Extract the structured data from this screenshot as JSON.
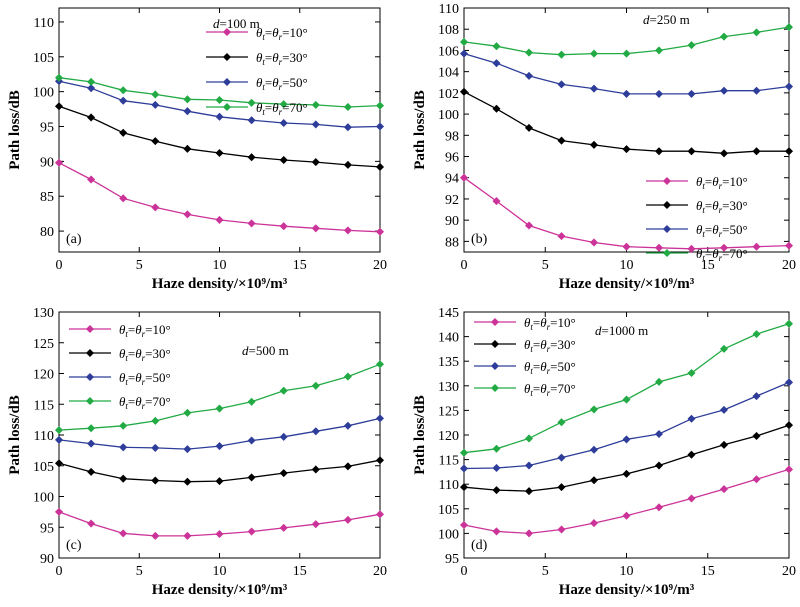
{
  "chart_data": [
    {
      "type": "line",
      "panel_label": "(a)",
      "annotation": {
        "prefix": "d",
        "value": "=100 m"
      },
      "xlabel": "Haze density/×10⁹/m³",
      "ylabel": "Path loss/dB",
      "xlim": [
        0,
        20
      ],
      "ylim": [
        77,
        112
      ],
      "xticks": [
        0,
        5,
        10,
        15,
        20
      ],
      "yticks": [
        80,
        85,
        90,
        95,
        100,
        105,
        110
      ],
      "legend_position": "top-right",
      "x": [
        0,
        2,
        4,
        6,
        8,
        10,
        12,
        14,
        16,
        18,
        20
      ],
      "series": [
        {
          "name": "θt=θr=10°",
          "color": "#cc3399",
          "values": [
            89.8,
            87.4,
            84.7,
            83.4,
            82.4,
            81.6,
            81.1,
            80.7,
            80.4,
            80.1,
            79.9
          ]
        },
        {
          "name": "θt=θr=30°",
          "color": "#000000",
          "values": [
            97.9,
            96.3,
            94.1,
            92.9,
            91.8,
            91.2,
            90.6,
            90.2,
            89.9,
            89.5,
            89.2
          ]
        },
        {
          "name": "θt=θr=50°",
          "color": "#2e3d99",
          "values": [
            101.5,
            100.5,
            98.7,
            98.1,
            97.2,
            96.4,
            95.9,
            95.5,
            95.3,
            94.9,
            95.0
          ]
        },
        {
          "name": "θt=θr=70°",
          "color": "#22aa44",
          "values": [
            102.0,
            101.4,
            100.2,
            99.6,
            98.9,
            98.8,
            98.4,
            98.2,
            98.1,
            97.8,
            98.0
          ]
        }
      ]
    },
    {
      "type": "line",
      "panel_label": "(b)",
      "annotation": {
        "prefix": "d",
        "value": "=250 m"
      },
      "xlabel": "Haze density/×10⁹/m³",
      "ylabel": "Path loss/dB",
      "xlim": [
        0,
        20
      ],
      "ylim": [
        87,
        110
      ],
      "xticks": [
        0,
        5,
        10,
        15,
        20
      ],
      "yticks": [
        88,
        90,
        92,
        94,
        96,
        98,
        100,
        102,
        104,
        106,
        108,
        110
      ],
      "legend_position": "bottom-right",
      "x": [
        0,
        2,
        4,
        6,
        8,
        10,
        12,
        14,
        16,
        18,
        20
      ],
      "series": [
        {
          "name": "θt=θr=10°",
          "color": "#cc3399",
          "values": [
            94.0,
            91.8,
            89.5,
            88.5,
            87.9,
            87.5,
            87.4,
            87.3,
            87.4,
            87.5,
            87.6
          ]
        },
        {
          "name": "θt=θr=30°",
          "color": "#000000",
          "values": [
            102.1,
            100.5,
            98.7,
            97.5,
            97.1,
            96.7,
            96.5,
            96.5,
            96.3,
            96.5,
            96.5
          ]
        },
        {
          "name": "θt=θr=50°",
          "color": "#2e3d99",
          "values": [
            105.7,
            104.8,
            103.6,
            102.8,
            102.4,
            101.9,
            101.9,
            101.9,
            102.2,
            102.2,
            102.6
          ]
        },
        {
          "name": "θt=θr=70°",
          "color": "#22aa44",
          "values": [
            106.8,
            106.4,
            105.8,
            105.6,
            105.7,
            105.7,
            106.0,
            106.5,
            107.3,
            107.7,
            108.2
          ]
        }
      ]
    },
    {
      "type": "line",
      "panel_label": "(c)",
      "annotation": {
        "prefix": "d",
        "value": "=500 m"
      },
      "xlabel": "Haze density/×10⁹/m³",
      "ylabel": "Path loss/dB",
      "xlim": [
        0,
        20
      ],
      "ylim": [
        90,
        130
      ],
      "xticks": [
        0,
        5,
        10,
        15,
        20
      ],
      "yticks": [
        90,
        95,
        100,
        105,
        110,
        115,
        120,
        125,
        130
      ],
      "legend_position": "top-left",
      "x": [
        0,
        2,
        4,
        6,
        8,
        10,
        12,
        14,
        16,
        18,
        20
      ],
      "series": [
        {
          "name": "θt=θr=10°",
          "color": "#cc3399",
          "values": [
            97.5,
            95.6,
            94.0,
            93.6,
            93.6,
            93.9,
            94.3,
            94.9,
            95.5,
            96.2,
            97.1
          ]
        },
        {
          "name": "θt=θr=30°",
          "color": "#000000",
          "values": [
            105.4,
            104.0,
            102.9,
            102.6,
            102.4,
            102.5,
            103.1,
            103.8,
            104.4,
            104.9,
            105.9
          ]
        },
        {
          "name": "θt=θr=50°",
          "color": "#2e3d99",
          "values": [
            109.2,
            108.6,
            108.0,
            107.9,
            107.7,
            108.2,
            109.1,
            109.7,
            110.6,
            111.5,
            112.7
          ]
        },
        {
          "name": "θt=θr=70°",
          "color": "#22aa44",
          "values": [
            110.8,
            111.1,
            111.5,
            112.3,
            113.6,
            114.3,
            115.4,
            117.2,
            118.0,
            119.5,
            121.5
          ]
        }
      ]
    },
    {
      "type": "line",
      "panel_label": "(d)",
      "annotation": {
        "prefix": "d",
        "value": "=1000 m"
      },
      "xlabel": "Haze density/×10⁹/m³",
      "ylabel": "Path loss/dB",
      "xlim": [
        0,
        20
      ],
      "ylim": [
        95,
        145
      ],
      "xticks": [
        0,
        5,
        10,
        15,
        20
      ],
      "yticks": [
        95,
        100,
        105,
        110,
        115,
        120,
        125,
        130,
        135,
        140,
        145
      ],
      "legend_position": "top-left",
      "x": [
        0,
        2,
        4,
        6,
        8,
        10,
        12,
        14,
        16,
        18,
        20
      ],
      "series": [
        {
          "name": "θt=θr=10°",
          "color": "#cc3399",
          "values": [
            101.7,
            100.4,
            100.0,
            100.8,
            102.1,
            103.6,
            105.3,
            107.1,
            109.0,
            111.0,
            113.0
          ]
        },
        {
          "name": "θt=θr=30°",
          "color": "#000000",
          "values": [
            109.4,
            108.8,
            108.6,
            109.4,
            110.8,
            112.1,
            113.8,
            116.0,
            118.0,
            119.8,
            122.0
          ]
        },
        {
          "name": "θt=θr=50°",
          "color": "#2e3d99",
          "values": [
            113.2,
            113.3,
            113.8,
            115.4,
            117.0,
            119.1,
            120.2,
            123.3,
            125.1,
            127.9,
            130.7
          ]
        },
        {
          "name": "θt=θr=70°",
          "color": "#22aa44",
          "values": [
            116.4,
            117.2,
            119.3,
            122.6,
            125.2,
            127.2,
            130.8,
            132.6,
            137.5,
            140.5,
            142.6
          ]
        }
      ]
    }
  ]
}
